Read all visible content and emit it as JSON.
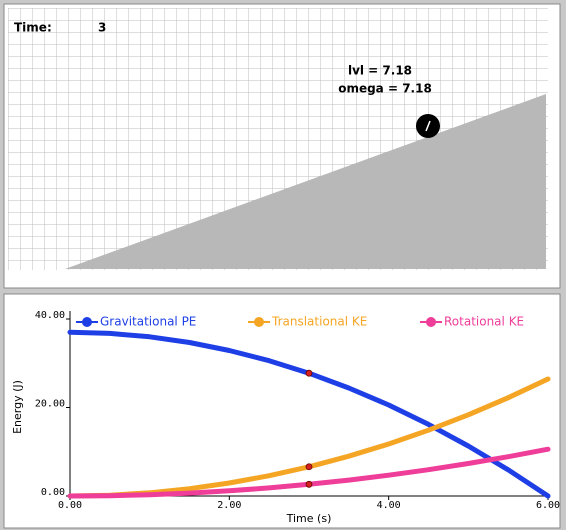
{
  "simulation": {
    "time_label": "Time:",
    "time": 3,
    "velocity_label": "lvl = 7.18",
    "omega_label": "omega = 7.18"
  },
  "chart_data": {
    "type": "line",
    "x_label": "Time (s)",
    "y_label": "Energy (J)",
    "x": [
      0,
      0.5,
      1,
      1.5,
      2,
      2.5,
      3,
      3.5,
      4,
      4.5,
      5,
      5.5,
      6
    ],
    "series": [
      {
        "name": "Gravitational PE",
        "color": "#1e3fe6",
        "values": [
          37,
          36.74,
          35.97,
          34.69,
          32.89,
          30.58,
          27.75,
          24.41,
          20.56,
          16.19,
          11.31,
          5.91,
          0
        ]
      },
      {
        "name": "Translational KE",
        "color": "#f5a524",
        "values": [
          0,
          0.18,
          0.73,
          1.65,
          2.94,
          4.59,
          6.61,
          8.99,
          11.75,
          14.87,
          18.35,
          22.21,
          26.43
        ]
      },
      {
        "name": "Rotational KE",
        "color": "#ef3d9a",
        "values": [
          0,
          0.07,
          0.29,
          0.66,
          1.17,
          1.84,
          2.64,
          3.6,
          4.7,
          5.95,
          7.34,
          8.88,
          10.57
        ]
      }
    ],
    "xlim": [
      0,
      6
    ],
    "xticks": [
      {
        "value": 0,
        "label": "0.00"
      },
      {
        "value": 2,
        "label": "2.00"
      },
      {
        "value": 4,
        "label": "4.00"
      },
      {
        "value": 6,
        "label": "6.00"
      }
    ],
    "ylim": [
      0,
      40
    ],
    "yticks": [
      {
        "value": 0,
        "label": "0.00"
      },
      {
        "value": 20,
        "label": "20.00"
      },
      {
        "value": 40,
        "label": "40.00"
      }
    ],
    "legend": "top"
  }
}
